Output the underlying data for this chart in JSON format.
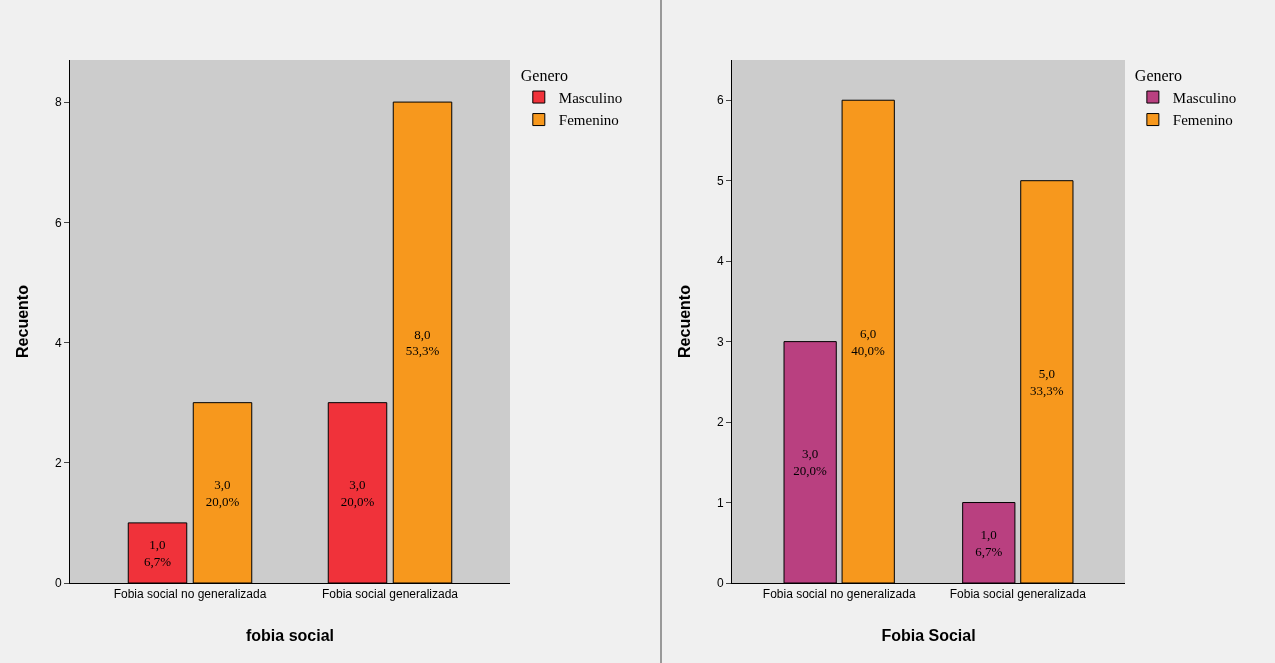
{
  "chart_data": [
    {
      "type": "bar",
      "xlabel": "fobia social",
      "ylabel": "Recuento",
      "legend_title": "Genero",
      "legend": "right",
      "grid": false,
      "categories": [
        "Fobia social no generalizada",
        "Fobia social generalizada"
      ],
      "ylim": [
        0,
        8.7
      ],
      "yticks": [
        0,
        2,
        4,
        6,
        8
      ],
      "series": [
        {
          "name": "Masculino",
          "color": "#f0323a",
          "values": [
            1,
            3
          ],
          "value_labels": [
            "1,0\n6,7%",
            "3,0\n20,0%"
          ]
        },
        {
          "name": "Femenino",
          "color": "#f7981d",
          "values": [
            3,
            8
          ],
          "value_labels": [
            "3,0\n20,0%",
            "8,0\n53,3%"
          ]
        }
      ]
    },
    {
      "type": "bar",
      "xlabel": "Fobia Social",
      "ylabel": "Recuento",
      "legend_title": "Genero",
      "legend": "right",
      "grid": false,
      "categories": [
        "Fobia social no generalizada",
        "Fobia social generalizada"
      ],
      "ylim": [
        0,
        6.5
      ],
      "yticks": [
        0,
        1,
        2,
        3,
        4,
        5,
        6
      ],
      "series": [
        {
          "name": "Masculino",
          "color": "#b94080",
          "values": [
            3,
            1
          ],
          "value_labels": [
            "3,0\n20,0%",
            "1,0\n6,7%"
          ]
        },
        {
          "name": "Femenino",
          "color": "#f7981d",
          "values": [
            6,
            5
          ],
          "value_labels": [
            "6,0\n40,0%",
            "5,0\n33,3%"
          ]
        }
      ]
    }
  ]
}
